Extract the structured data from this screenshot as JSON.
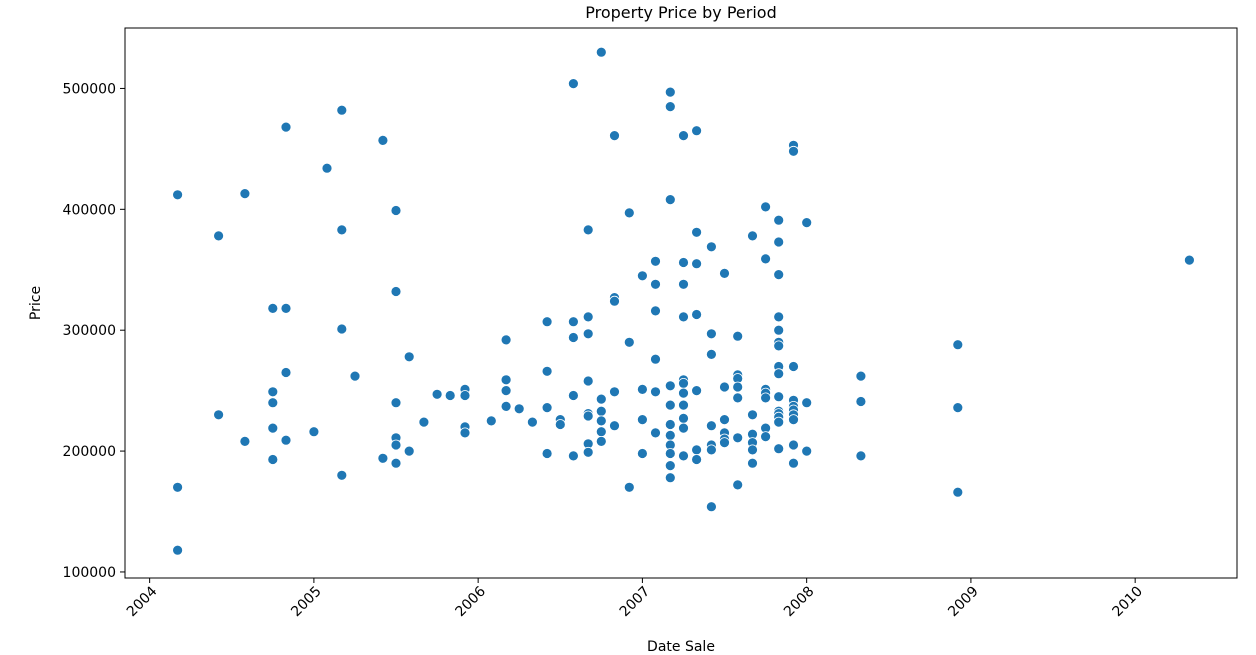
{
  "chart_data": {
    "type": "scatter",
    "title": "Property Price by Period",
    "xlabel": "Date Sale",
    "ylabel": "Price",
    "xlim": [
      2003.85,
      2010.62
    ],
    "ylim": [
      95000,
      550000
    ],
    "x_ticks": [
      2004,
      2005,
      2006,
      2007,
      2008,
      2009,
      2010
    ],
    "x_tick_labels": [
      "2004",
      "2005",
      "2006",
      "2007",
      "2008",
      "2009",
      "2010"
    ],
    "y_ticks": [
      100000,
      200000,
      300000,
      400000,
      500000
    ],
    "y_tick_labels": [
      "100000",
      "200000",
      "300000",
      "400000",
      "500000"
    ],
    "grid": false,
    "marker_color": "#1f77b4",
    "marker_edge_color": "#ffffff",
    "points": [
      [
        2004.17,
        412000
      ],
      [
        2004.17,
        170000
      ],
      [
        2004.17,
        118000
      ],
      [
        2004.42,
        378000
      ],
      [
        2004.42,
        230000
      ],
      [
        2004.58,
        413000
      ],
      [
        2004.58,
        208000
      ],
      [
        2004.75,
        318000
      ],
      [
        2004.75,
        249000
      ],
      [
        2004.75,
        240000
      ],
      [
        2004.75,
        219000
      ],
      [
        2004.75,
        193000
      ],
      [
        2004.83,
        468000
      ],
      [
        2004.83,
        318000
      ],
      [
        2004.83,
        265000
      ],
      [
        2004.83,
        209000
      ],
      [
        2005.0,
        216000
      ],
      [
        2005.08,
        434000
      ],
      [
        2005.17,
        482000
      ],
      [
        2005.17,
        383000
      ],
      [
        2005.17,
        301000
      ],
      [
        2005.17,
        180000
      ],
      [
        2005.25,
        262000
      ],
      [
        2005.42,
        457000
      ],
      [
        2005.42,
        194000
      ],
      [
        2005.5,
        399000
      ],
      [
        2005.5,
        332000
      ],
      [
        2005.5,
        240000
      ],
      [
        2005.5,
        211000
      ],
      [
        2005.5,
        205000
      ],
      [
        2005.5,
        190000
      ],
      [
        2005.58,
        278000
      ],
      [
        2005.58,
        200000
      ],
      [
        2005.67,
        224000
      ],
      [
        2005.75,
        247000
      ],
      [
        2005.83,
        246000
      ],
      [
        2005.92,
        251000
      ],
      [
        2005.92,
        246000
      ],
      [
        2005.92,
        220000
      ],
      [
        2005.92,
        215000
      ],
      [
        2006.08,
        225000
      ],
      [
        2006.17,
        292000
      ],
      [
        2006.17,
        259000
      ],
      [
        2006.17,
        250000
      ],
      [
        2006.17,
        237000
      ],
      [
        2006.25,
        235000
      ],
      [
        2006.33,
        224000
      ],
      [
        2006.42,
        307000
      ],
      [
        2006.42,
        266000
      ],
      [
        2006.42,
        236000
      ],
      [
        2006.42,
        198000
      ],
      [
        2006.5,
        226000
      ],
      [
        2006.5,
        222000
      ],
      [
        2006.58,
        504000
      ],
      [
        2006.58,
        307000
      ],
      [
        2006.58,
        294000
      ],
      [
        2006.58,
        246000
      ],
      [
        2006.58,
        196000
      ],
      [
        2006.67,
        383000
      ],
      [
        2006.67,
        311000
      ],
      [
        2006.67,
        297000
      ],
      [
        2006.67,
        258000
      ],
      [
        2006.67,
        231000
      ],
      [
        2006.67,
        229000
      ],
      [
        2006.67,
        206000
      ],
      [
        2006.67,
        199000
      ],
      [
        2006.75,
        530000
      ],
      [
        2006.75,
        243000
      ],
      [
        2006.75,
        233000
      ],
      [
        2006.75,
        225000
      ],
      [
        2006.75,
        216000
      ],
      [
        2006.75,
        208000
      ],
      [
        2006.83,
        461000
      ],
      [
        2006.83,
        327000
      ],
      [
        2006.83,
        324000
      ],
      [
        2006.83,
        249000
      ],
      [
        2006.83,
        221000
      ],
      [
        2006.92,
        397000
      ],
      [
        2006.92,
        290000
      ],
      [
        2006.92,
        170000
      ],
      [
        2007.0,
        345000
      ],
      [
        2007.0,
        251000
      ],
      [
        2007.0,
        226000
      ],
      [
        2007.0,
        198000
      ],
      [
        2007.08,
        357000
      ],
      [
        2007.08,
        338000
      ],
      [
        2007.08,
        316000
      ],
      [
        2007.08,
        276000
      ],
      [
        2007.08,
        249000
      ],
      [
        2007.08,
        215000
      ],
      [
        2007.17,
        497000
      ],
      [
        2007.17,
        485000
      ],
      [
        2007.17,
        408000
      ],
      [
        2007.17,
        254000
      ],
      [
        2007.17,
        238000
      ],
      [
        2007.17,
        222000
      ],
      [
        2007.17,
        213000
      ],
      [
        2007.17,
        205000
      ],
      [
        2007.17,
        198000
      ],
      [
        2007.17,
        188000
      ],
      [
        2007.17,
        178000
      ],
      [
        2007.25,
        461000
      ],
      [
        2007.25,
        356000
      ],
      [
        2007.25,
        338000
      ],
      [
        2007.25,
        311000
      ],
      [
        2007.25,
        259000
      ],
      [
        2007.25,
        256000
      ],
      [
        2007.25,
        248000
      ],
      [
        2007.25,
        238000
      ],
      [
        2007.25,
        227000
      ],
      [
        2007.25,
        219000
      ],
      [
        2007.25,
        196000
      ],
      [
        2007.33,
        465000
      ],
      [
        2007.33,
        381000
      ],
      [
        2007.33,
        355000
      ],
      [
        2007.33,
        313000
      ],
      [
        2007.33,
        250000
      ],
      [
        2007.33,
        201000
      ],
      [
        2007.33,
        193000
      ],
      [
        2007.42,
        369000
      ],
      [
        2007.42,
        297000
      ],
      [
        2007.42,
        280000
      ],
      [
        2007.42,
        221000
      ],
      [
        2007.42,
        205000
      ],
      [
        2007.42,
        201000
      ],
      [
        2007.42,
        154000
      ],
      [
        2007.5,
        347000
      ],
      [
        2007.5,
        253000
      ],
      [
        2007.5,
        226000
      ],
      [
        2007.5,
        215000
      ],
      [
        2007.5,
        210000
      ],
      [
        2007.5,
        207000
      ],
      [
        2007.58,
        295000
      ],
      [
        2007.58,
        263000
      ],
      [
        2007.58,
        260000
      ],
      [
        2007.58,
        253000
      ],
      [
        2007.58,
        244000
      ],
      [
        2007.58,
        211000
      ],
      [
        2007.58,
        172000
      ],
      [
        2007.67,
        378000
      ],
      [
        2007.67,
        230000
      ],
      [
        2007.67,
        214000
      ],
      [
        2007.67,
        207000
      ],
      [
        2007.67,
        201000
      ],
      [
        2007.67,
        190000
      ],
      [
        2007.75,
        402000
      ],
      [
        2007.75,
        359000
      ],
      [
        2007.75,
        251000
      ],
      [
        2007.75,
        248000
      ],
      [
        2007.75,
        244000
      ],
      [
        2007.75,
        219000
      ],
      [
        2007.75,
        212000
      ],
      [
        2007.83,
        391000
      ],
      [
        2007.83,
        373000
      ],
      [
        2007.83,
        346000
      ],
      [
        2007.83,
        311000
      ],
      [
        2007.83,
        300000
      ],
      [
        2007.83,
        290000
      ],
      [
        2007.83,
        287000
      ],
      [
        2007.83,
        270000
      ],
      [
        2007.83,
        264000
      ],
      [
        2007.83,
        245000
      ],
      [
        2007.83,
        233000
      ],
      [
        2007.83,
        231000
      ],
      [
        2007.83,
        228000
      ],
      [
        2007.83,
        224000
      ],
      [
        2007.83,
        202000
      ],
      [
        2007.92,
        453000
      ],
      [
        2007.92,
        448000
      ],
      [
        2007.92,
        270000
      ],
      [
        2007.92,
        242000
      ],
      [
        2007.92,
        237000
      ],
      [
        2007.92,
        234000
      ],
      [
        2007.92,
        230000
      ],
      [
        2007.92,
        226000
      ],
      [
        2007.92,
        205000
      ],
      [
        2007.92,
        190000
      ],
      [
        2008.0,
        389000
      ],
      [
        2008.0,
        240000
      ],
      [
        2008.0,
        200000
      ],
      [
        2008.33,
        262000
      ],
      [
        2008.33,
        241000
      ],
      [
        2008.33,
        196000
      ],
      [
        2008.92,
        288000
      ],
      [
        2008.92,
        236000
      ],
      [
        2008.92,
        166000
      ],
      [
        2010.33,
        358000
      ]
    ]
  }
}
